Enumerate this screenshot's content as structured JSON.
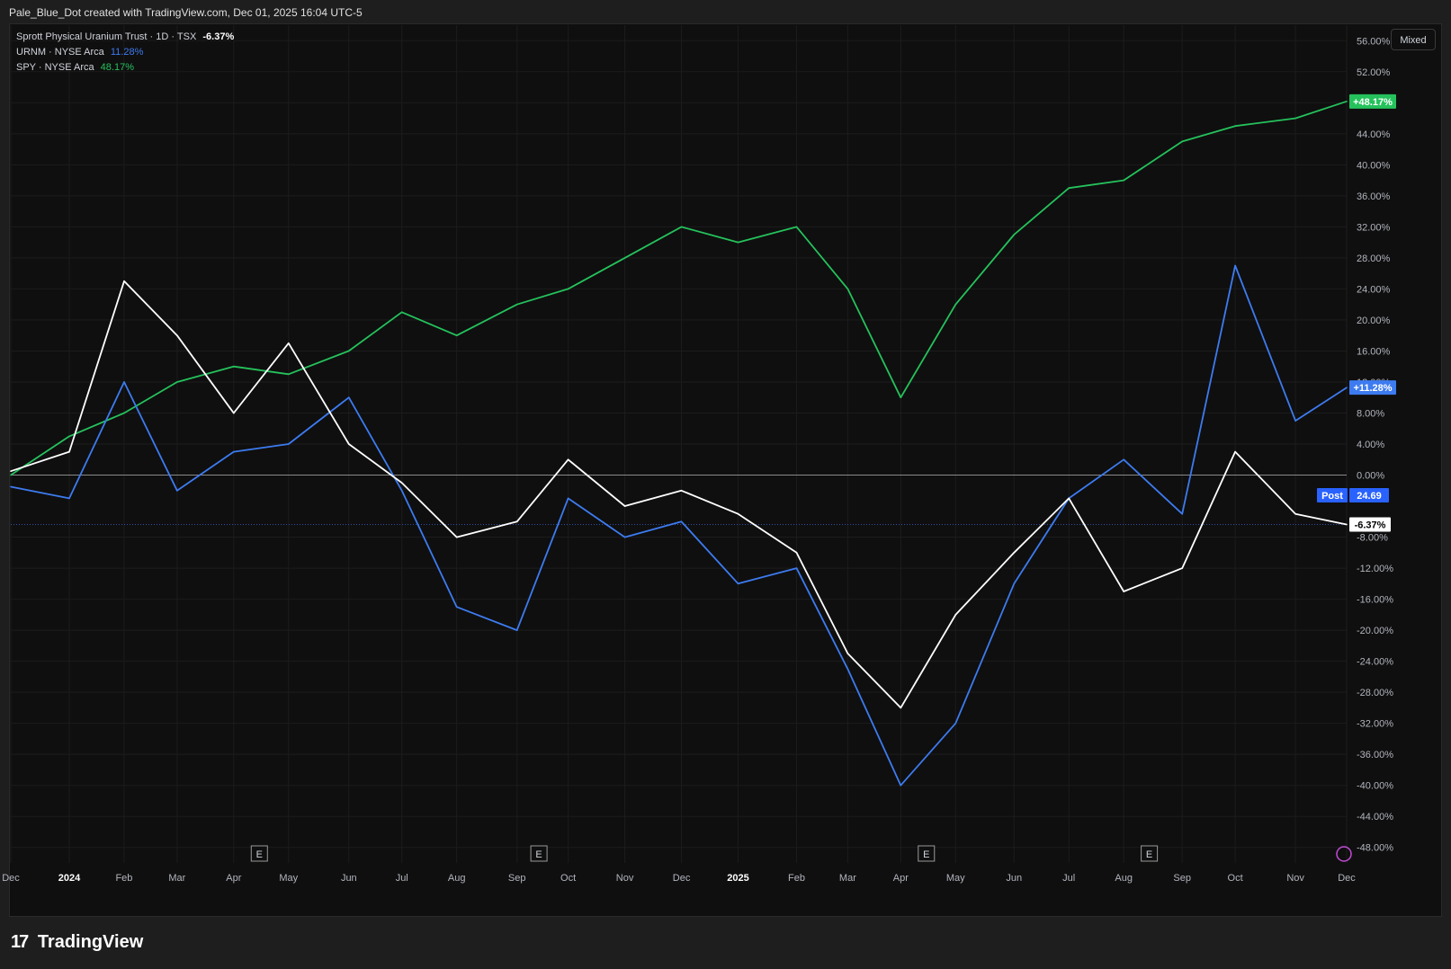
{
  "header": {
    "attribution": "Pale_Blue_Dot created with TradingView.com, Dec 01, 2025 16:04 UTC-5"
  },
  "legend": {
    "main": {
      "name": "Sprott Physical Uranium Trust · 1D · TSX",
      "value": "-6.37%"
    },
    "urnm": {
      "name": "URNM · NYSE Arca",
      "value": "11.28%"
    },
    "spy": {
      "name": "SPY · NYSE Arca",
      "value": "48.17%"
    }
  },
  "toolbar": {
    "scale_mode_label": "Mixed"
  },
  "price_badges": {
    "spy": "+48.17%",
    "urnm": "+11.28%",
    "post_label": "Post",
    "post_value": "24.69",
    "main": "-6.37%"
  },
  "footer": {
    "brand": "TradingView",
    "brand_mark": "17"
  },
  "earnings_marker_label": "E",
  "colors": {
    "background": "#0f0f0f",
    "main": "#ffffff",
    "urnm": "#3d7bf0",
    "spy": "#25c25c"
  },
  "chart_data": {
    "type": "line",
    "yaxis_unit": "%",
    "yaxis_ticks": [
      "56.00%",
      "52.00%",
      "48.00%",
      "44.00%",
      "40.00%",
      "36.00%",
      "32.00%",
      "28.00%",
      "24.00%",
      "20.00%",
      "16.00%",
      "12.00%",
      "8.00%",
      "4.00%",
      "0.00%",
      "-8.00%",
      "-12.00%",
      "-16.00%",
      "-20.00%",
      "-24.00%",
      "-28.00%",
      "-32.00%",
      "-36.00%",
      "-40.00%",
      "-44.00%",
      "-48.00%"
    ],
    "ylim": [
      -50,
      58
    ],
    "xaxis_labels": [
      "Dec",
      "2024",
      "Feb",
      "Mar",
      "Apr",
      "May",
      "Jun",
      "Jul",
      "Aug",
      "Sep",
      "Oct",
      "Nov",
      "Dec",
      "2025",
      "Feb",
      "Mar",
      "Apr",
      "May",
      "Jun",
      "Jul",
      "Aug",
      "Sep",
      "Oct",
      "Nov",
      "Dec"
    ],
    "x": [
      "2023-12-01",
      "2024-01-02",
      "2024-02-01",
      "2024-03-01",
      "2024-04-01",
      "2024-05-01",
      "2024-06-03",
      "2024-07-02",
      "2024-08-01",
      "2024-09-03",
      "2024-10-01",
      "2024-11-01",
      "2024-12-02",
      "2025-01-02",
      "2025-02-03",
      "2025-03-03",
      "2025-04-01",
      "2025-05-01",
      "2025-06-02",
      "2025-07-02",
      "2025-08-01",
      "2025-09-02",
      "2025-10-01",
      "2025-11-03",
      "2025-12-01"
    ],
    "earnings_dates": [
      "2024-04-15",
      "2024-09-15",
      "2025-04-15",
      "2025-08-15"
    ],
    "series": [
      {
        "name": "Sprott Physical Uranium Trust",
        "values": [
          0.5,
          3,
          25,
          18,
          8,
          17,
          4,
          -1,
          -8,
          -6,
          2,
          -4,
          -2,
          -5,
          -10,
          -23,
          -30,
          -18,
          -10,
          -3,
          -15,
          -12,
          3,
          -5,
          -6.37
        ]
      },
      {
        "name": "URNM",
        "values": [
          -1.5,
          -3,
          12,
          -2,
          3,
          4,
          10,
          -2,
          -17,
          -20,
          -3,
          -8,
          -6,
          -14,
          -12,
          -25,
          -40,
          -32,
          -14,
          -3,
          2,
          -5,
          27,
          7,
          11.28
        ]
      },
      {
        "name": "SPY",
        "values": [
          0,
          5,
          8,
          12,
          14,
          13,
          16,
          21,
          18,
          22,
          24,
          28,
          32,
          30,
          32,
          24,
          10,
          22,
          31,
          37,
          38,
          43,
          45,
          46,
          48.17
        ]
      }
    ]
  }
}
